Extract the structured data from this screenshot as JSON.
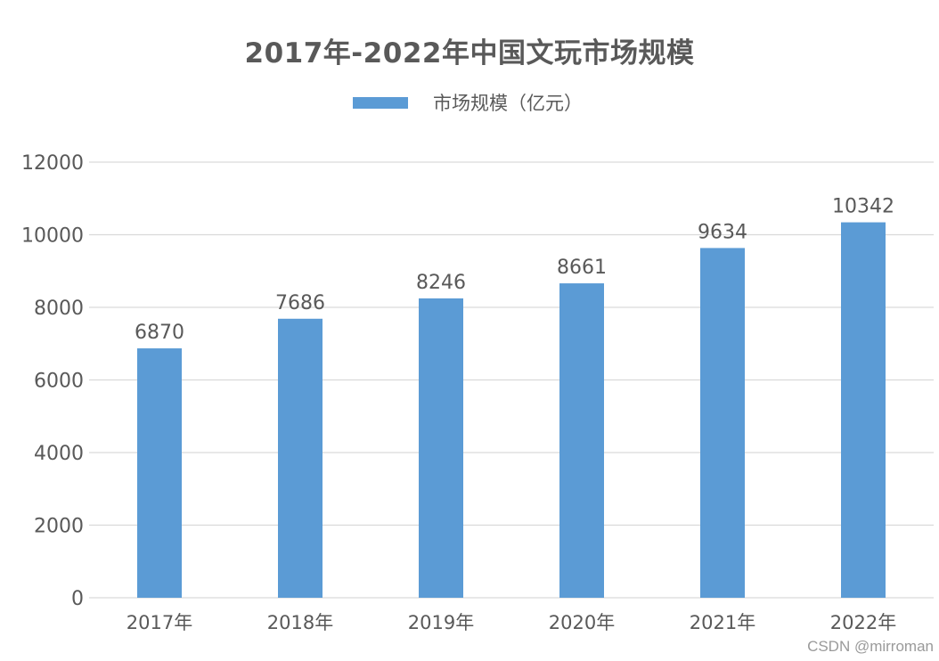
{
  "colors": {
    "bar": "#5b9bd5",
    "grid": "#d9d9d9",
    "text": "#595959"
  },
  "watermark": "CSDN @mirroman",
  "chart_data": {
    "type": "bar",
    "title": "2017年-2022年中国文玩市场规模",
    "xlabel": "",
    "ylabel": "",
    "categories": [
      "2017年",
      "2018年",
      "2019年",
      "2020年",
      "2021年",
      "2022年"
    ],
    "series": [
      {
        "name": "市场规模（亿元）",
        "values": [
          6870,
          7686,
          8246,
          8661,
          9634,
          10342
        ]
      }
    ],
    "ylim": [
      0,
      12000
    ],
    "yticks": [
      0,
      2000,
      4000,
      6000,
      8000,
      10000,
      12000
    ],
    "grid": true,
    "legend": "top-center",
    "data_labels": true
  }
}
